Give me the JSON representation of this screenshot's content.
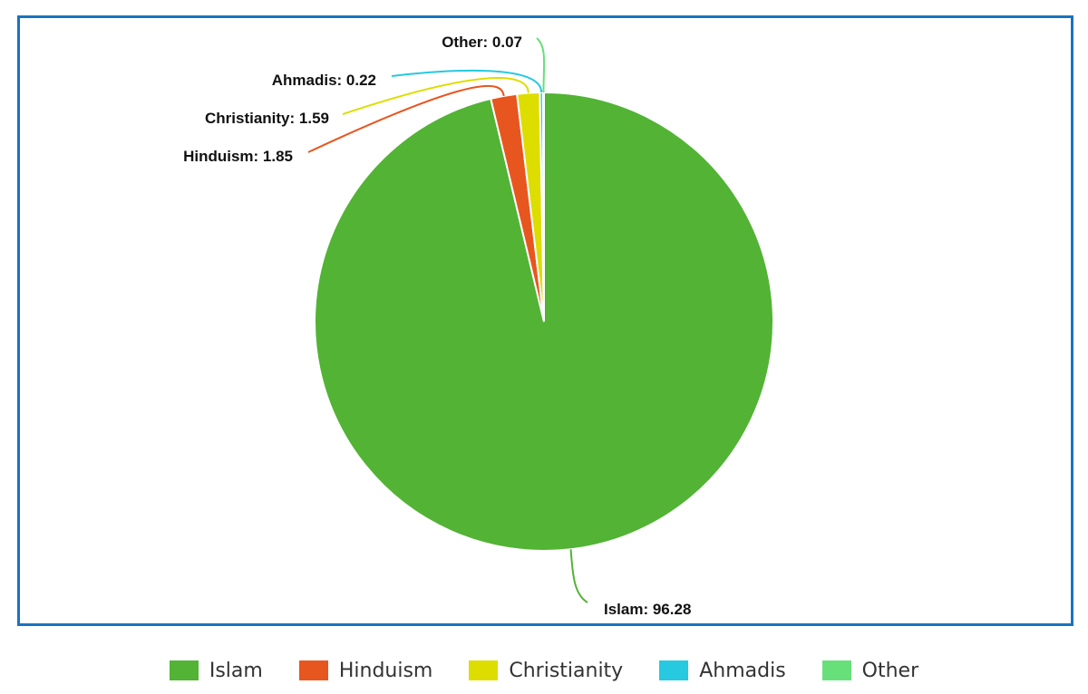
{
  "chart_data": {
    "type": "pie",
    "slices": [
      {
        "name": "Islam",
        "value": 96.28,
        "color": "#52b334",
        "label": "Islam: 96.28"
      },
      {
        "name": "Hinduism",
        "value": 1.85,
        "color": "#e8561f",
        "label": "Hinduism: 1.85"
      },
      {
        "name": "Christianity",
        "value": 1.59,
        "color": "#dedd00",
        "label": "Christianity: 1.59"
      },
      {
        "name": "Ahmadis",
        "value": 0.22,
        "color": "#26c9e0",
        "label": "Ahmadis: 0.22"
      },
      {
        "name": "Other",
        "value": 0.07,
        "color": "#67e07a",
        "label": "Other: 0.07"
      }
    ],
    "legend_position": "bottom",
    "frame_color": "#1a73c0"
  },
  "legend": {
    "items": [
      {
        "label": "Islam",
        "color": "#52b334"
      },
      {
        "label": "Hinduism",
        "color": "#e8561f"
      },
      {
        "label": "Christianity",
        "color": "#dedd00"
      },
      {
        "label": "Ahmadis",
        "color": "#26c9e0"
      },
      {
        "label": "Other",
        "color": "#67e07a"
      }
    ]
  }
}
